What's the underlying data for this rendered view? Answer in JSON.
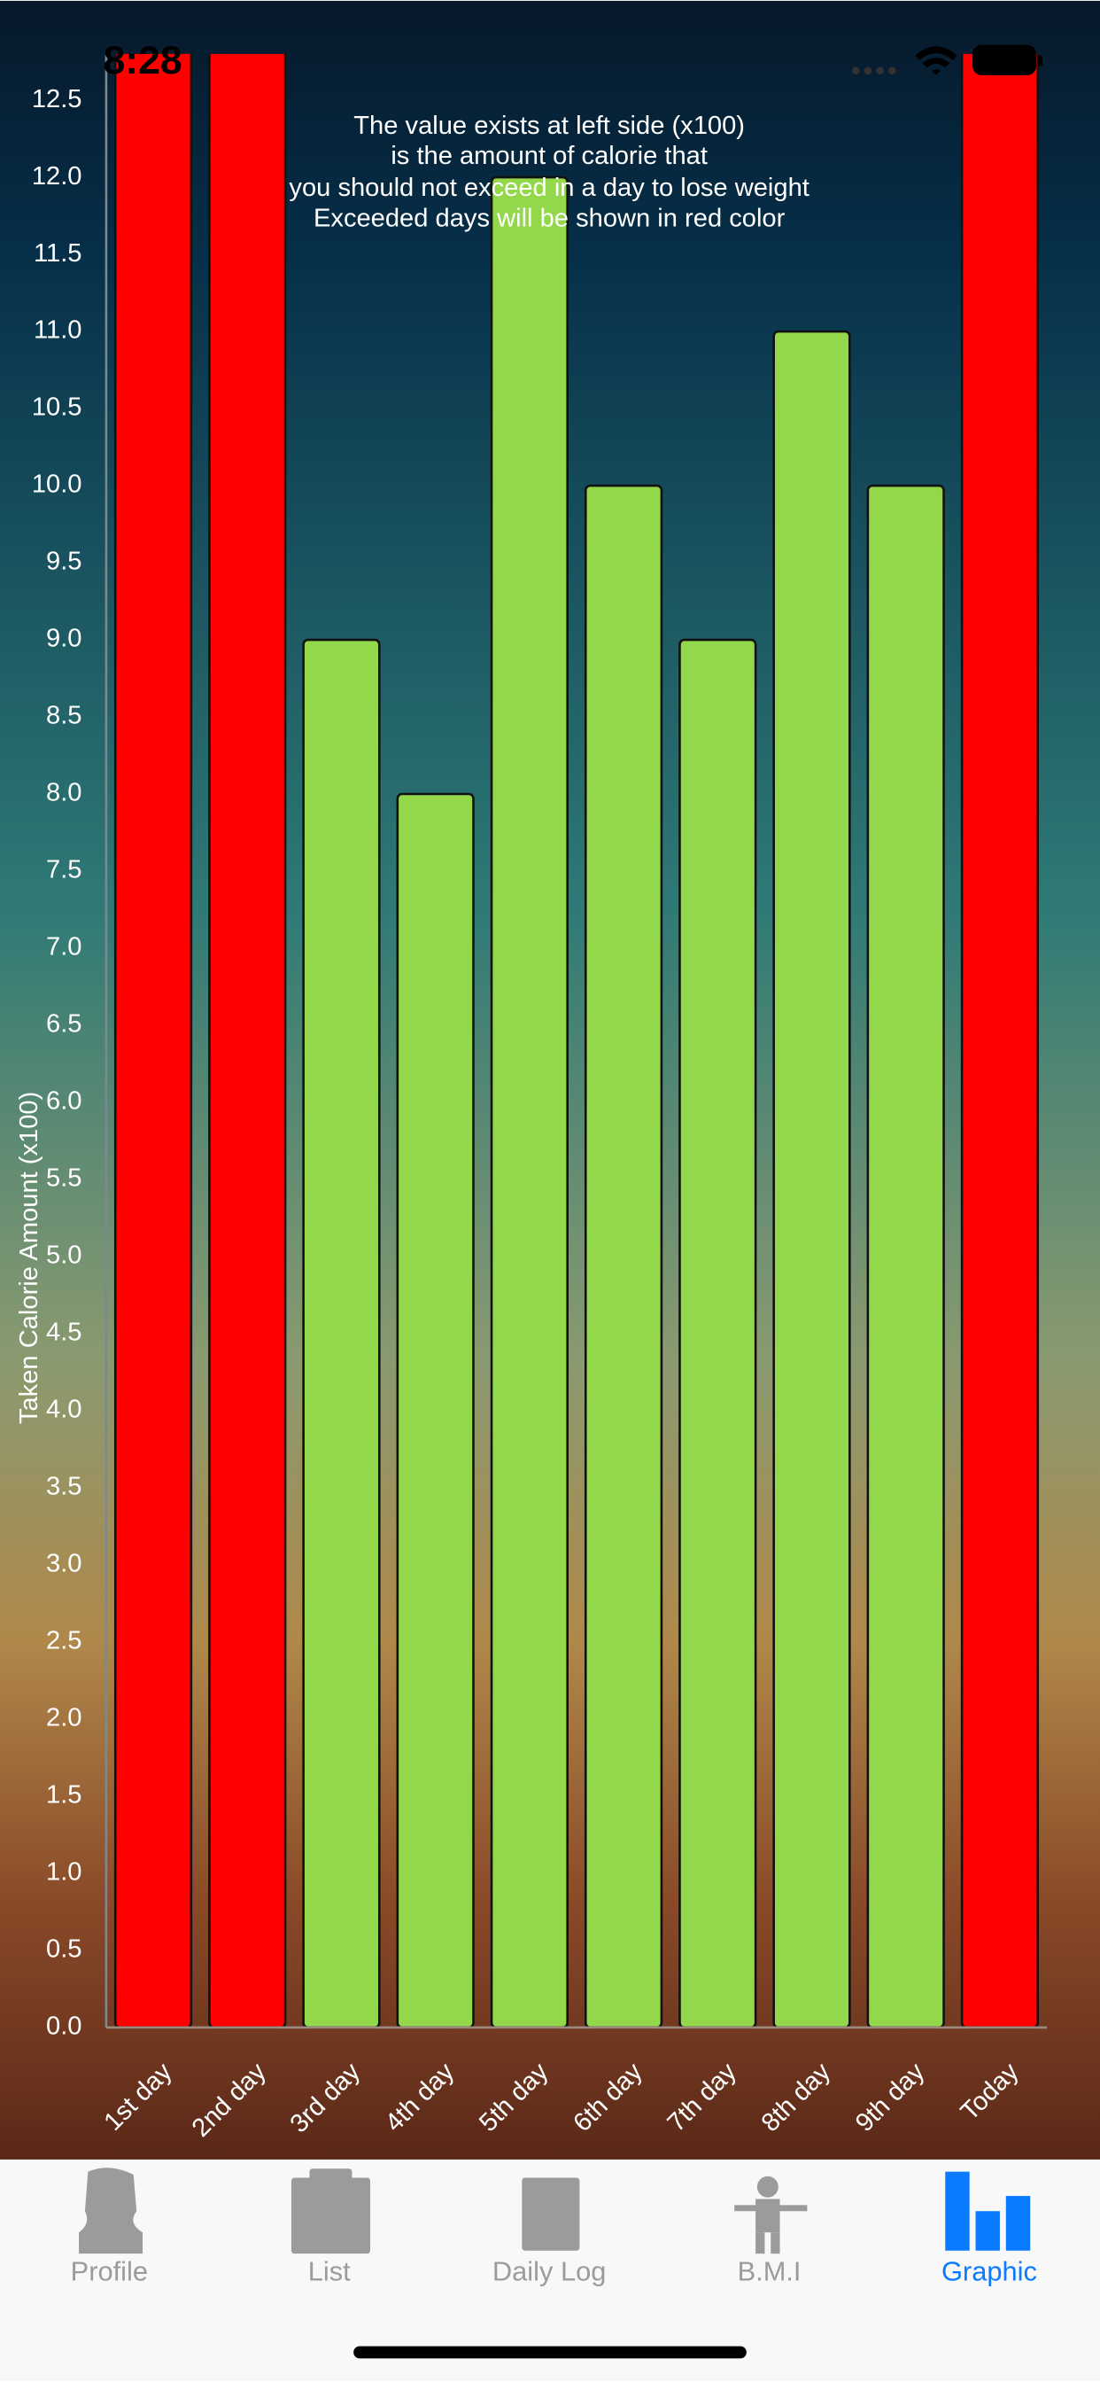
{
  "status_bar": {
    "time": "8:28"
  },
  "chart_data": {
    "type": "bar",
    "annotation": [
      "The value exists at left side (x100)",
      "is the amount of calorie that",
      "you should not exceed in a day to lose weight",
      "Exceeded days will be shown in red color"
    ],
    "y_label": "Taken Calorie Amount (x100)",
    "categories": [
      "1st day",
      "2nd day",
      "3rd day",
      "4th day",
      "5th day",
      "6th day",
      "7th day",
      "8th day",
      "9th day",
      "Today"
    ],
    "values": [
      13,
      13,
      9,
      8,
      12,
      10,
      9,
      11,
      10,
      13
    ],
    "colors": [
      "#ff0000",
      "#ff0000",
      "#92d84a",
      "#92d84a",
      "#92d84a",
      "#92d84a",
      "#92d84a",
      "#92d84a",
      "#92d84a",
      "#ff0000"
    ],
    "ylim": [
      0,
      12.8
    ],
    "yticks": [
      {
        "value": 0,
        "label": "0.0"
      },
      0.5,
      {
        "value": 1,
        "label": "1.0"
      },
      1.5,
      {
        "value": 2,
        "label": "2.0"
      },
      2.5,
      {
        "value": 3,
        "label": "3.0"
      },
      3.5,
      {
        "value": 4,
        "label": "4.0"
      },
      4.5,
      {
        "value": 5,
        "label": "5.0"
      },
      5.5,
      {
        "value": 6,
        "label": "6.0"
      },
      6.5,
      {
        "value": 7,
        "label": "7.0"
      },
      7.5,
      {
        "value": 8,
        "label": "8.0"
      },
      8.5,
      {
        "value": 9,
        "label": "9.0"
      },
      9.5,
      {
        "value": 10,
        "label": "10.0"
      },
      10.5,
      {
        "value": 11,
        "label": "11.0"
      },
      11.5,
      {
        "value": 12,
        "label": "12.0"
      },
      12.5
    ],
    "grid": false
  },
  "tab_bar": {
    "items": [
      "Profile",
      "List",
      "Daily Log",
      "B.M.I",
      "Graphic"
    ],
    "selected": 4
  }
}
